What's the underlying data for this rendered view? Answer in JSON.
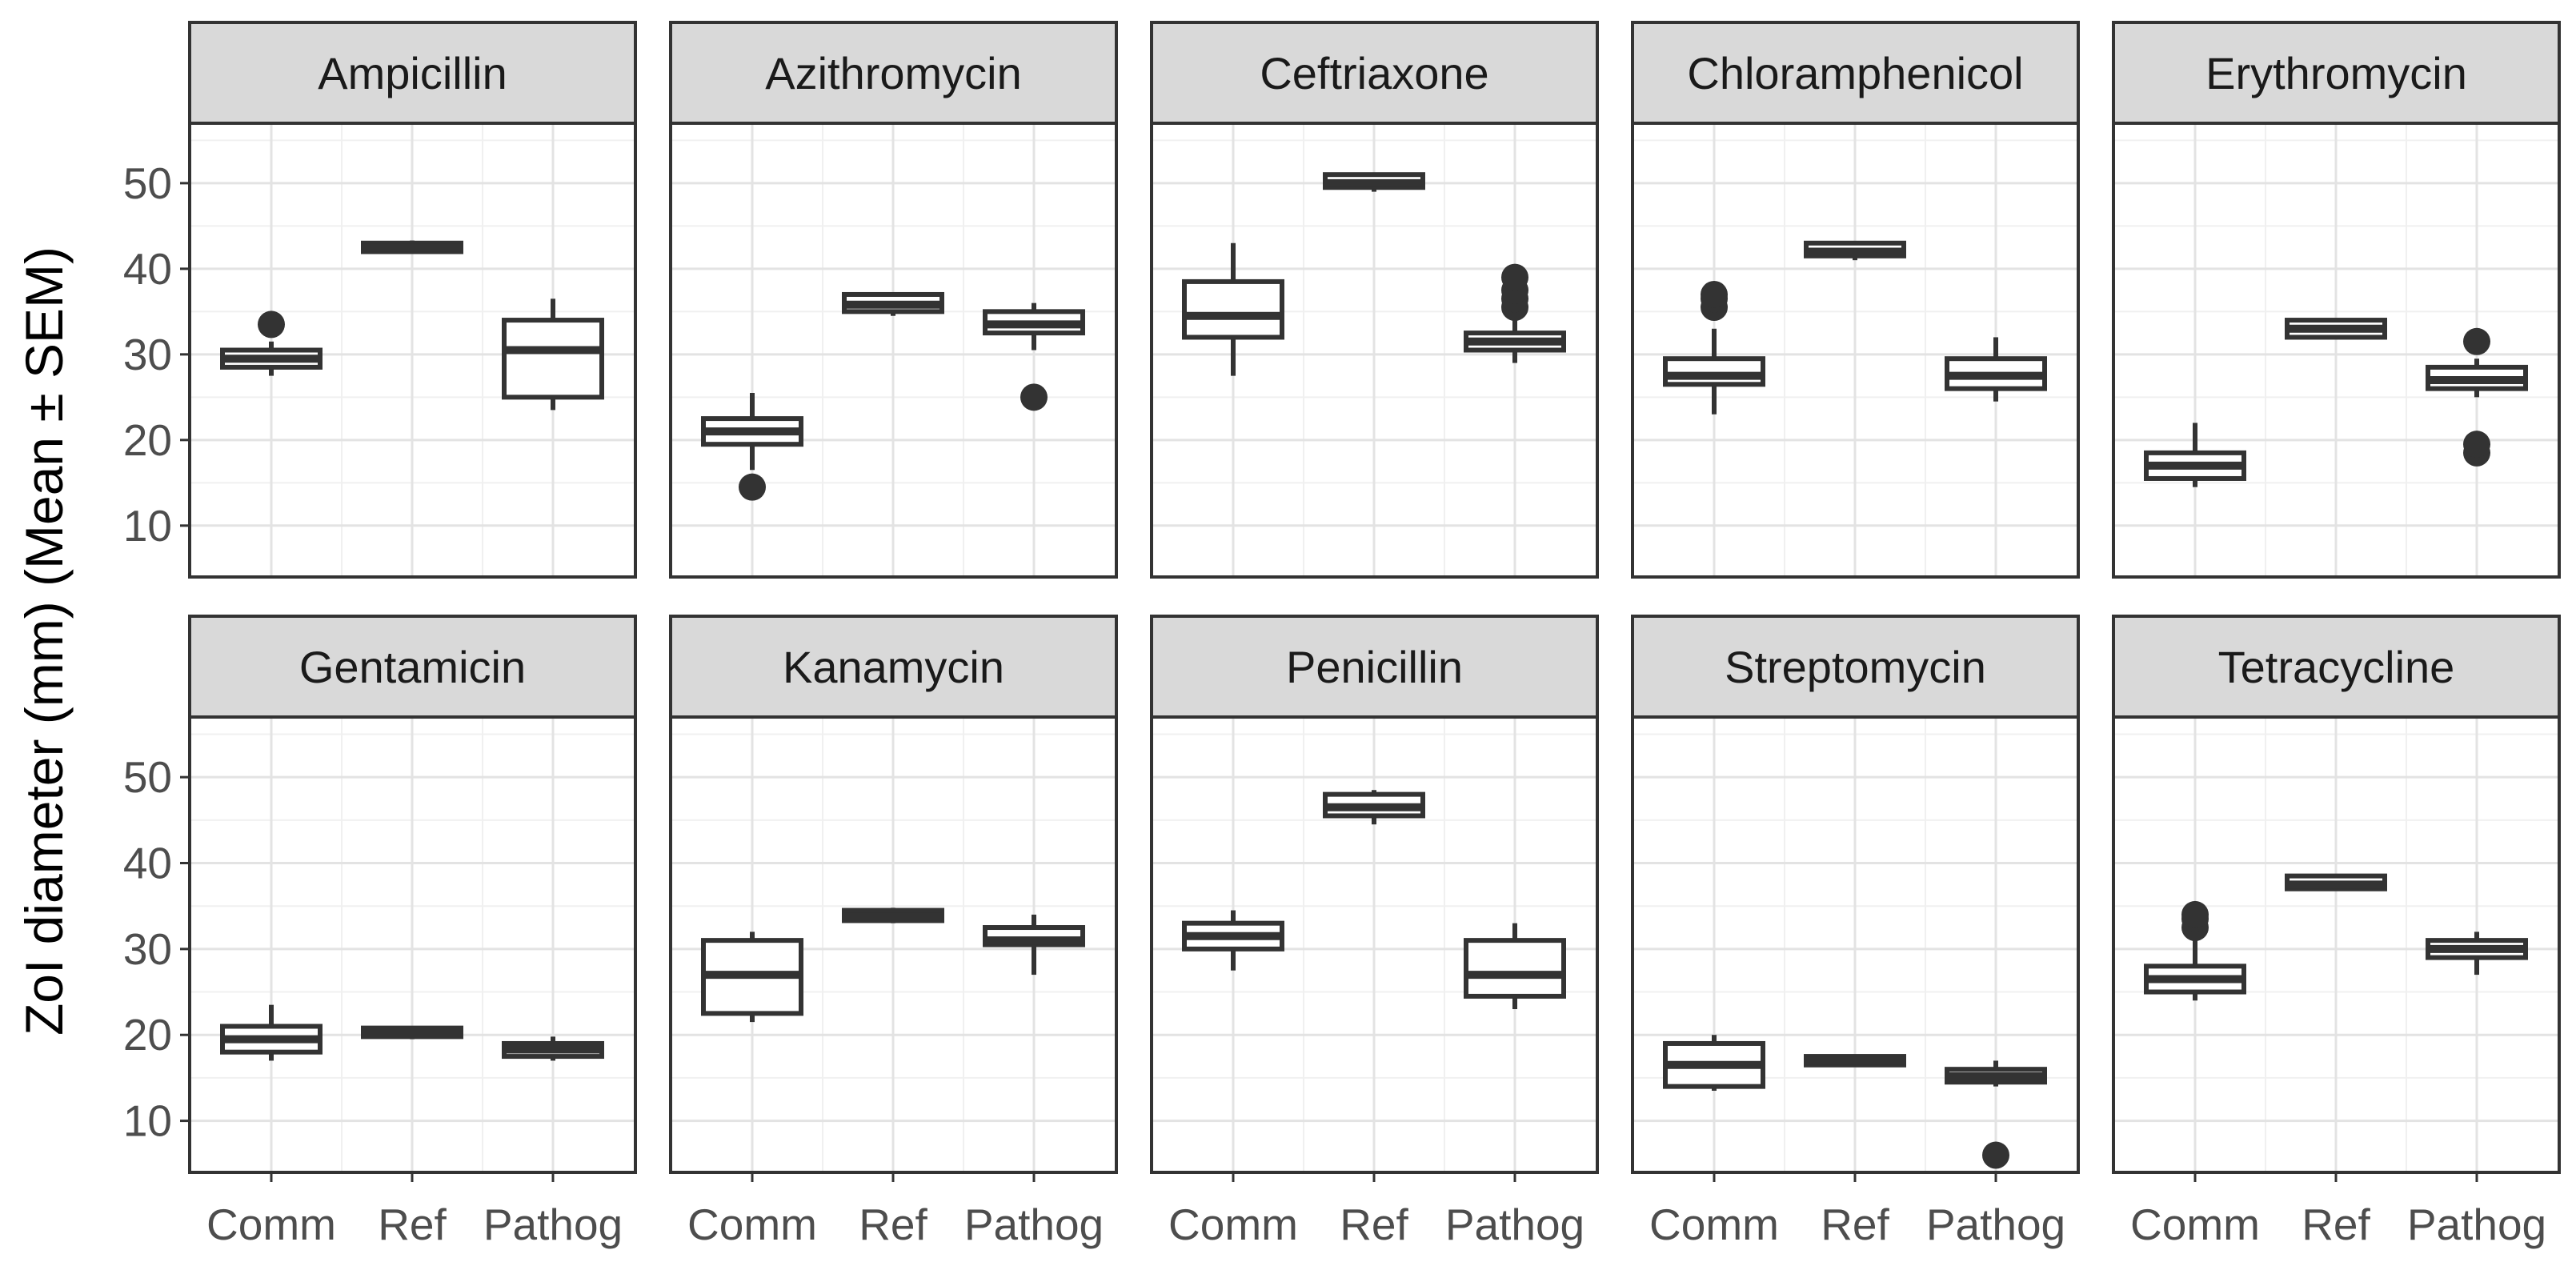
{
  "chart_data": {
    "type": "boxplot",
    "facet_layout": {
      "rows": 2,
      "cols": 5
    },
    "xlabel": "",
    "ylabel": "ZoI diameter (mm) (Mean ± SEM)",
    "categories": [
      "Comm",
      "Ref",
      "Pathog"
    ],
    "ylim": [
      4,
      57
    ],
    "yticks": [
      10,
      20,
      30,
      40,
      50
    ],
    "grid": true,
    "panels": [
      {
        "title": "Ampicillin",
        "boxes": [
          {
            "category": "Comm",
            "min": 27.5,
            "q1": 28.5,
            "median": 29.5,
            "q3": 30.5,
            "max": 31.5,
            "outliers": [
              33.5
            ]
          },
          {
            "category": "Ref",
            "min": 41.8,
            "q1": 42.0,
            "median": 42.5,
            "q3": 43.0,
            "max": 43.3,
            "outliers": []
          },
          {
            "category": "Pathog",
            "min": 23.5,
            "q1": 25.0,
            "median": 30.5,
            "q3": 34.0,
            "max": 36.5,
            "outliers": []
          }
        ]
      },
      {
        "title": "Azithromycin",
        "boxes": [
          {
            "category": "Comm",
            "min": 16.5,
            "q1": 19.5,
            "median": 21.0,
            "q3": 22.5,
            "max": 25.5,
            "outliers": [
              14.5
            ]
          },
          {
            "category": "Ref",
            "min": 34.5,
            "q1": 35.0,
            "median": 35.8,
            "q3": 37.0,
            "max": 37.0,
            "outliers": []
          },
          {
            "category": "Pathog",
            "min": 30.5,
            "q1": 32.5,
            "median": 33.5,
            "q3": 35.0,
            "max": 36.0,
            "outliers": [
              25.0
            ]
          }
        ]
      },
      {
        "title": "Ceftriaxone",
        "boxes": [
          {
            "category": "Comm",
            "min": 27.5,
            "q1": 32.0,
            "median": 34.5,
            "q3": 38.5,
            "max": 43.0,
            "outliers": []
          },
          {
            "category": "Ref",
            "min": 49.0,
            "q1": 49.5,
            "median": 50.0,
            "q3": 51.0,
            "max": 51.0,
            "outliers": []
          },
          {
            "category": "Pathog",
            "min": 29.0,
            "q1": 30.5,
            "median": 31.5,
            "q3": 32.5,
            "max": 34.5,
            "outliers": [
              35.5,
              36.5,
              37.5,
              39.0
            ]
          }
        ]
      },
      {
        "title": "Chloramphenicol",
        "boxes": [
          {
            "category": "Comm",
            "min": 23.0,
            "q1": 26.5,
            "median": 27.5,
            "q3": 29.5,
            "max": 33.0,
            "outliers": [
              35.5,
              36.5,
              37.0
            ]
          },
          {
            "category": "Ref",
            "min": 41.0,
            "q1": 41.5,
            "median": 42.0,
            "q3": 43.0,
            "max": 43.0,
            "outliers": []
          },
          {
            "category": "Pathog",
            "min": 24.5,
            "q1": 26.0,
            "median": 27.5,
            "q3": 29.5,
            "max": 32.0,
            "outliers": []
          }
        ]
      },
      {
        "title": "Erythromycin",
        "boxes": [
          {
            "category": "Comm",
            "min": 14.5,
            "q1": 15.5,
            "median": 17.0,
            "q3": 18.5,
            "max": 22.0,
            "outliers": []
          },
          {
            "category": "Ref",
            "min": 31.8,
            "q1": 32.0,
            "median": 33.0,
            "q3": 34.0,
            "max": 34.2,
            "outliers": []
          },
          {
            "category": "Pathog",
            "min": 25.0,
            "q1": 26.0,
            "median": 27.0,
            "q3": 28.5,
            "max": 29.5,
            "outliers": [
              18.5,
              19.5,
              31.5
            ]
          }
        ]
      },
      {
        "title": "Gentamicin",
        "boxes": [
          {
            "category": "Comm",
            "min": 17.0,
            "q1": 18.0,
            "median": 19.5,
            "q3": 21.0,
            "max": 23.5,
            "outliers": []
          },
          {
            "category": "Ref",
            "min": 19.5,
            "q1": 19.8,
            "median": 20.3,
            "q3": 20.8,
            "max": 21.0,
            "outliers": []
          },
          {
            "category": "Pathog",
            "min": 17.0,
            "q1": 17.5,
            "median": 18.3,
            "q3": 19.0,
            "max": 19.8,
            "outliers": []
          }
        ]
      },
      {
        "title": "Kanamycin",
        "boxes": [
          {
            "category": "Comm",
            "min": 21.5,
            "q1": 22.5,
            "median": 27.0,
            "q3": 31.0,
            "max": 32.0,
            "outliers": []
          },
          {
            "category": "Ref",
            "min": 33.0,
            "q1": 33.3,
            "median": 33.8,
            "q3": 34.5,
            "max": 34.8,
            "outliers": []
          },
          {
            "category": "Pathog",
            "min": 27.0,
            "q1": 30.5,
            "median": 31.0,
            "q3": 32.5,
            "max": 34.0,
            "outliers": []
          }
        ]
      },
      {
        "title": "Penicillin",
        "boxes": [
          {
            "category": "Comm",
            "min": 27.5,
            "q1": 30.0,
            "median": 31.5,
            "q3": 33.0,
            "max": 34.5,
            "outliers": []
          },
          {
            "category": "Ref",
            "min": 44.5,
            "q1": 45.5,
            "median": 46.5,
            "q3": 48.0,
            "max": 48.5,
            "outliers": []
          },
          {
            "category": "Pathog",
            "min": 23.0,
            "q1": 24.5,
            "median": 27.0,
            "q3": 31.0,
            "max": 33.0,
            "outliers": []
          }
        ]
      },
      {
        "title": "Streptomycin",
        "boxes": [
          {
            "category": "Comm",
            "min": 13.5,
            "q1": 14.0,
            "median": 16.5,
            "q3": 19.0,
            "max": 20.0,
            "outliers": []
          },
          {
            "category": "Ref",
            "min": 16.5,
            "q1": 16.5,
            "median": 17.0,
            "q3": 17.5,
            "max": 17.5,
            "outliers": []
          },
          {
            "category": "Pathog",
            "min": 14.0,
            "q1": 14.5,
            "median": 15.2,
            "q3": 16.0,
            "max": 17.0,
            "outliers": [
              6.0
            ]
          }
        ]
      },
      {
        "title": "Tetracycline",
        "boxes": [
          {
            "category": "Comm",
            "min": 24.0,
            "q1": 25.0,
            "median": 26.5,
            "q3": 28.0,
            "max": 31.0,
            "outliers": [
              32.5,
              33.5,
              34.0
            ]
          },
          {
            "category": "Ref",
            "min": 37.0,
            "q1": 37.0,
            "median": 37.5,
            "q3": 38.5,
            "max": 38.5,
            "outliers": []
          },
          {
            "category": "Pathog",
            "min": 27.0,
            "q1": 29.0,
            "median": 30.0,
            "q3": 31.0,
            "max": 32.0,
            "outliers": []
          }
        ]
      }
    ]
  }
}
